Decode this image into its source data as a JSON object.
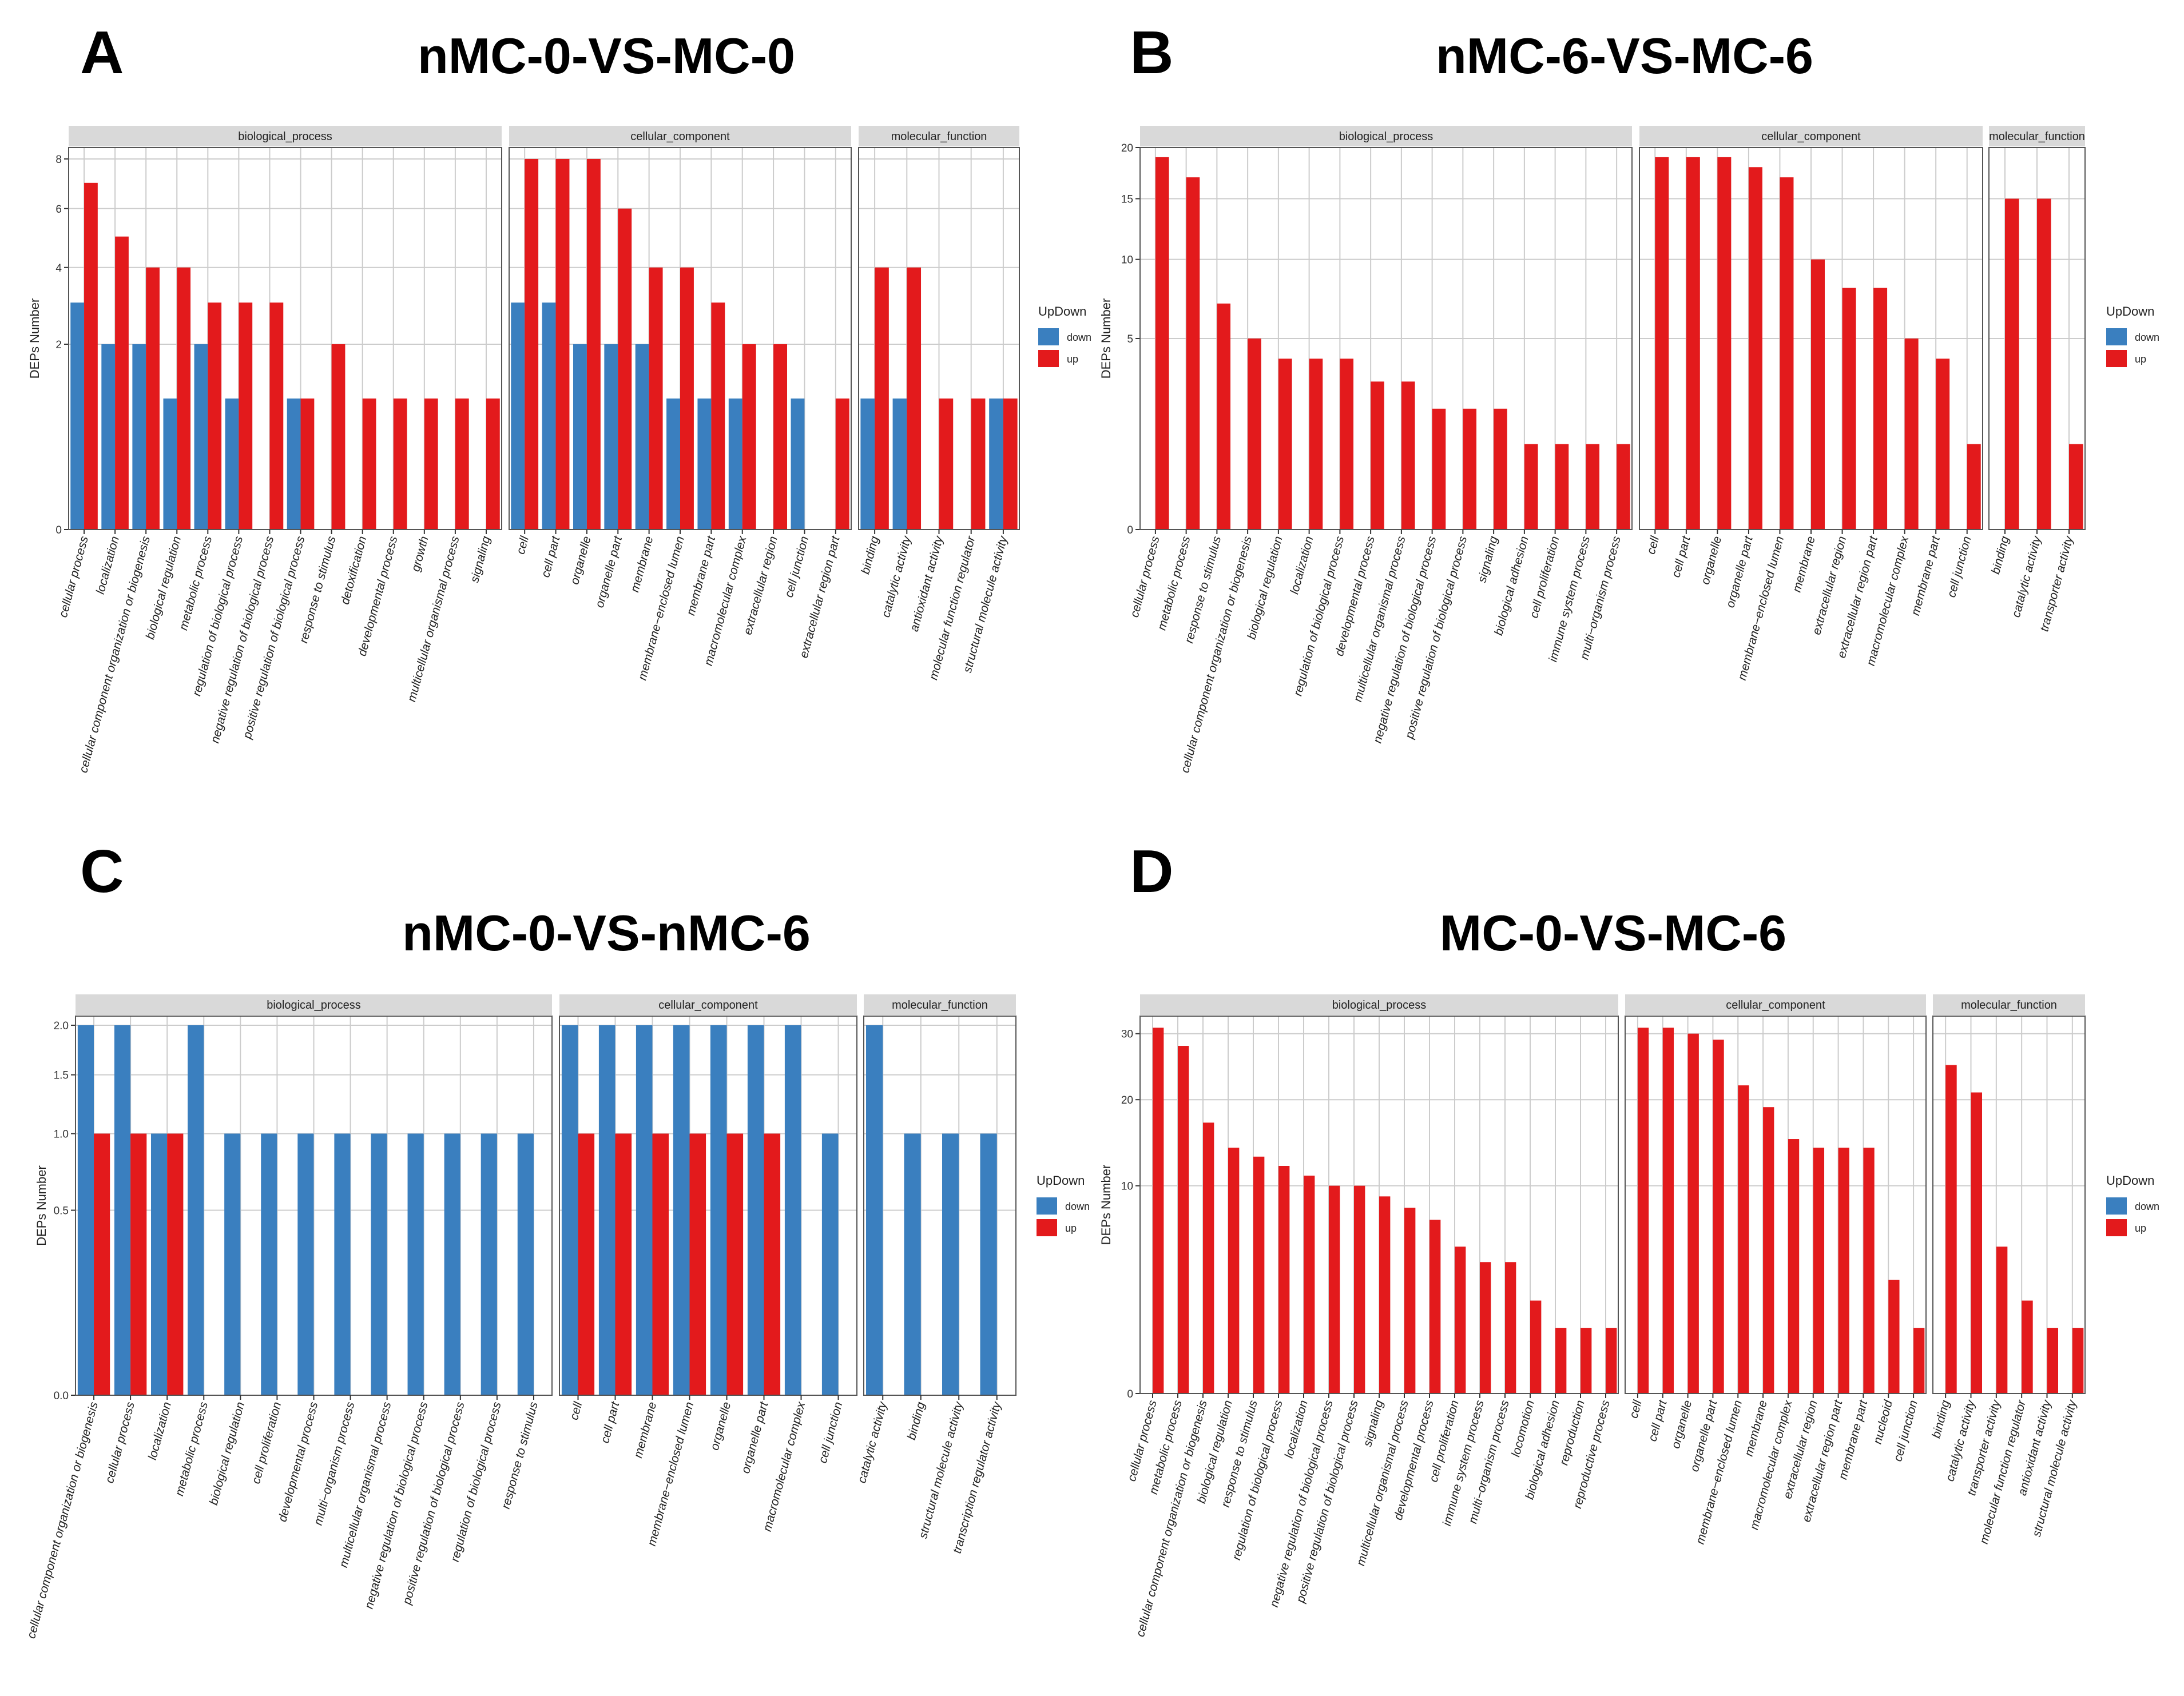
{
  "colors": {
    "up": "#e31a1c",
    "down": "#3a7fbf",
    "strip": "#d9d9d9",
    "grid": "#cccccc",
    "border": "#555555"
  },
  "panels": [
    {
      "letter": "A",
      "title": "nMC-0-VS-MC-0"
    },
    {
      "letter": "B",
      "title": "nMC-6-VS-MC-6"
    },
    {
      "letter": "C",
      "title": "nMC-0-VS-nMC-6"
    },
    {
      "letter": "D",
      "title": "MC-0-VS-MC-6"
    }
  ],
  "chart_data": [
    {
      "type": "bar",
      "title": "nMC-0-VS-MC-0",
      "ylabel": "DEPs Number",
      "yscale": "sqrt",
      "ylim": [
        0,
        8.5
      ],
      "yticks": [
        0,
        2,
        4,
        6,
        8
      ],
      "legend": {
        "title": "UpDown",
        "labels": [
          "down",
          "up"
        ]
      },
      "facets": [
        {
          "name": "biological_process",
          "categories": [
            "cellular process",
            "localization",
            "cellular component organization or biogenesis",
            "biological regulation",
            "metabolic process",
            "regulation of biological process",
            "negative regulation of biological process",
            "positive regulation of biological process",
            "response to stimulus",
            "detoxification",
            "developmental process",
            "growth",
            "multicellular organismal process",
            "signaling"
          ],
          "down": [
            3,
            2,
            2,
            1,
            2,
            1,
            0,
            1,
            0,
            0,
            0,
            0,
            0,
            0
          ],
          "up": [
            7,
            5,
            4,
            4,
            3,
            3,
            3,
            1,
            2,
            1,
            1,
            1,
            1,
            1
          ]
        },
        {
          "name": "cellular_component",
          "categories": [
            "cell",
            "cell part",
            "organelle",
            "organelle part",
            "membrane",
            "membrane−enclosed lumen",
            "membrane part",
            "macromolecular complex",
            "extracellular region",
            "cell junction",
            "extracellular region part"
          ],
          "down": [
            3,
            3,
            2,
            2,
            2,
            1,
            1,
            1,
            0,
            1,
            0
          ],
          "up": [
            8,
            8,
            8,
            6,
            4,
            4,
            3,
            2,
            2,
            0,
            1
          ]
        },
        {
          "name": "molecular_function",
          "categories": [
            "binding",
            "catalytic activity",
            "antioxidant activity",
            "molecular function regulator",
            "structural molecule activity"
          ],
          "down": [
            1,
            1,
            0,
            0,
            1
          ],
          "up": [
            4,
            4,
            1,
            1,
            1
          ]
        }
      ]
    },
    {
      "type": "bar",
      "title": "nMC-6-VS-MC-6",
      "ylabel": "DEPs Number",
      "yscale": "sqrt",
      "ylim": [
        0,
        20
      ],
      "yticks": [
        0,
        5,
        10,
        15,
        20
      ],
      "legend": {
        "title": "UpDown",
        "labels": [
          "down",
          "up"
        ]
      },
      "facets": [
        {
          "name": "biological_process",
          "categories": [
            "cellular process",
            "metabolic process",
            "response to stimulus",
            "cellular component organization or biogenesis",
            "biological regulation",
            "localization",
            "regulation of biological process",
            "developmental process",
            "multicellular organismal process",
            "negative regulation of biological process",
            "positive regulation of biological process",
            "signaling",
            "biological adhesion",
            "cell proliferation",
            "immune system process",
            "multi−organism process"
          ],
          "down": [
            0,
            0,
            0,
            0,
            0,
            0,
            0,
            0,
            0,
            0,
            0,
            0,
            0,
            0,
            0,
            0
          ],
          "up": [
            19,
            17,
            7,
            5,
            4,
            4,
            4,
            3,
            3,
            2,
            2,
            2,
            1,
            1,
            1,
            1
          ]
        },
        {
          "name": "cellular_component",
          "categories": [
            "cell",
            "cell part",
            "organelle",
            "organelle part",
            "membrane−enclosed lumen",
            "membrane",
            "extracellular region",
            "extracellular region part",
            "macromolecular complex",
            "membrane part",
            "cell junction"
          ],
          "down": [
            0,
            0,
            0,
            0,
            0,
            0,
            0,
            0,
            0,
            0,
            0
          ],
          "up": [
            19,
            19,
            19,
            18,
            17,
            10,
            8,
            8,
            5,
            4,
            1
          ]
        },
        {
          "name": "molecular_function",
          "categories": [
            "binding",
            "catalytic activity",
            "transporter activity"
          ],
          "down": [
            0,
            0,
            0
          ],
          "up": [
            15,
            15,
            1
          ]
        }
      ]
    },
    {
      "type": "bar",
      "title": "nMC-0-VS-nMC-6",
      "ylabel": "DEPs Number",
      "yscale": "sqrt",
      "ylim": [
        0,
        2.1
      ],
      "yticks": [
        0.0,
        0.5,
        1.0,
        1.5,
        2.0
      ],
      "ytick_labels": [
        "0.0",
        "0.5",
        "1.0",
        "1.5",
        "2.0"
      ],
      "legend": {
        "title": "UpDown",
        "labels": [
          "down",
          "up"
        ]
      },
      "facets": [
        {
          "name": "biological_process",
          "categories": [
            "cellular component organization or biogenesis",
            "cellular process",
            "localization",
            "metabolic process",
            "biological regulation",
            "cell proliferation",
            "developmental process",
            "multi−organism process",
            "multicellular organismal process",
            "negative regulation of biological process",
            "positive regulation of biological process",
            "regulation of biological process",
            "response to stimulus"
          ],
          "down": [
            2,
            2,
            1,
            2,
            1,
            1,
            1,
            1,
            1,
            1,
            1,
            1,
            1
          ],
          "up": [
            1,
            1,
            1,
            0,
            0,
            0,
            0,
            0,
            0,
            0,
            0,
            0,
            0
          ]
        },
        {
          "name": "cellular_component",
          "categories": [
            "cell",
            "cell part",
            "membrane",
            "membrane−enclosed lumen",
            "organelle",
            "organelle part",
            "macromolecular complex",
            "cell junction"
          ],
          "down": [
            2,
            2,
            2,
            2,
            2,
            2,
            2,
            1
          ],
          "up": [
            1,
            1,
            1,
            1,
            1,
            1,
            0,
            0
          ]
        },
        {
          "name": "molecular_function",
          "categories": [
            "catalytic activity",
            "binding",
            "structural molecule activity",
            "transcription regulator activity"
          ],
          "down": [
            2,
            1,
            1,
            1
          ],
          "up": [
            0,
            0,
            0,
            0
          ]
        }
      ]
    },
    {
      "type": "bar",
      "title": "MC-0-VS-MC-6",
      "ylabel": "DEPs Number",
      "yscale": "sqrt",
      "ylim": [
        0,
        33
      ],
      "yticks": [
        0,
        10,
        20,
        30
      ],
      "legend": {
        "title": "UpDown",
        "labels": [
          "down",
          "up"
        ]
      },
      "facets": [
        {
          "name": "biological_process",
          "categories": [
            "cellular process",
            "metabolic process",
            "cellular component organization or biogenesis",
            "biological regulation",
            "response to stimulus",
            "regulation of biological process",
            "localization",
            "negative regulation of biological process",
            "positive regulation of biological process",
            "signaling",
            "multicellular organismal process",
            "developmental process",
            "cell proliferation",
            "immune system process",
            "multi−organism process",
            "locomotion",
            "biological adhesion",
            "reproduction",
            "reproductive process"
          ],
          "down": [
            0,
            0,
            0,
            0,
            0,
            0,
            0,
            0,
            0,
            0,
            0,
            0,
            0,
            0,
            0,
            0,
            0,
            0,
            0
          ],
          "up": [
            31,
            28,
            17,
            14,
            13,
            12,
            11,
            10,
            10,
            9,
            8,
            7,
            5,
            4,
            4,
            2,
            1,
            1,
            1
          ]
        },
        {
          "name": "cellular_component",
          "categories": [
            "cell",
            "cell part",
            "organelle",
            "organelle part",
            "membrane−enclosed lumen",
            "membrane",
            "macromolecular complex",
            "extracellular region",
            "extracellular region part",
            "membrane part",
            "nucleoid",
            "cell junction"
          ],
          "down": [
            0,
            0,
            0,
            0,
            0,
            0,
            0,
            0,
            0,
            0,
            0,
            0
          ],
          "up": [
            31,
            31,
            30,
            29,
            22,
            19,
            15,
            14,
            14,
            14,
            3,
            1
          ]
        },
        {
          "name": "molecular_function",
          "categories": [
            "binding",
            "catalytic activity",
            "transporter activity",
            "molecular function regulator",
            "antioxidant activity",
            "structural molecule activity"
          ],
          "down": [
            0,
            0,
            0,
            0,
            0,
            0
          ],
          "up": [
            25,
            21,
            5,
            2,
            1,
            1
          ]
        }
      ]
    }
  ]
}
